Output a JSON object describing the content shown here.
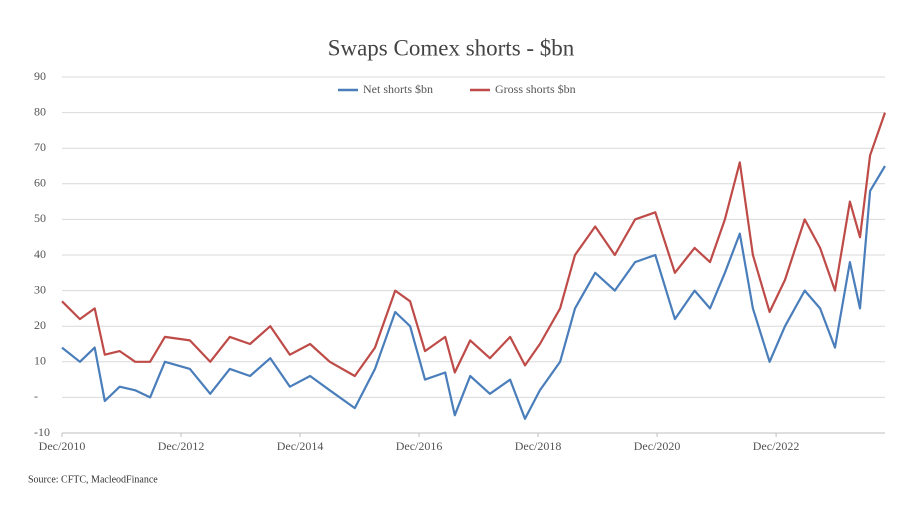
{
  "chart_data": {
    "type": "line",
    "title": "Swaps Comex shorts - $bn",
    "source": "Source: CFTC, MacleodFinance",
    "x": [
      2010.92,
      2011.22,
      2011.47,
      2011.64,
      2011.89,
      2012.15,
      2012.4,
      2012.65,
      2013.07,
      2013.41,
      2013.74,
      2014.08,
      2014.42,
      2014.75,
      2015.09,
      2015.42,
      2015.84,
      2016.18,
      2016.52,
      2016.77,
      2017.02,
      2017.36,
      2017.52,
      2017.78,
      2018.11,
      2018.45,
      2018.7,
      2018.95,
      2019.29,
      2019.54,
      2019.88,
      2020.21,
      2020.55,
      2020.89,
      2021.22,
      2021.55,
      2021.81,
      2022.06,
      2022.31,
      2022.53,
      2022.81,
      2023.07,
      2023.4,
      2023.66,
      2023.91,
      2024.16,
      2024.33,
      2024.5,
      2024.75
    ],
    "series": [
      {
        "name": "Net shorts $bn",
        "color": "#4a7ebb",
        "values": [
          14,
          10,
          14,
          -1,
          3,
          2,
          0,
          10,
          8,
          1,
          8,
          6,
          11,
          3,
          6,
          2,
          -3,
          8,
          24,
          20,
          5,
          7,
          -5,
          6,
          1,
          5,
          -6,
          2,
          10,
          25,
          35,
          30,
          38,
          40,
          22,
          30,
          25,
          35,
          46,
          25,
          10,
          20,
          30,
          25,
          14,
          38,
          25,
          58,
          65
        ]
      },
      {
        "name": "Gross shorts $bn",
        "color": "#be4b48",
        "values": [
          27,
          22,
          25,
          12,
          13,
          10,
          10,
          17,
          16,
          10,
          17,
          15,
          20,
          12,
          15,
          10,
          6,
          14,
          30,
          27,
          13,
          17,
          7,
          16,
          11,
          17,
          9,
          15,
          25,
          40,
          48,
          40,
          50,
          52,
          35,
          42,
          38,
          50,
          66,
          40,
          24,
          33,
          50,
          42,
          30,
          55,
          45,
          68,
          80
        ]
      }
    ],
    "xlim": [
      2010.92,
      2024.75
    ],
    "xticks": [
      {
        "value": 2010.92,
        "label": "Dec/2010"
      },
      {
        "value": 2012.92,
        "label": "Dec/2012"
      },
      {
        "value": 2014.92,
        "label": "Dec/2014"
      },
      {
        "value": 2016.92,
        "label": "Dec/2016"
      },
      {
        "value": 2018.92,
        "label": "Dec/2018"
      },
      {
        "value": 2020.92,
        "label": "Dec/2020"
      },
      {
        "value": 2022.92,
        "label": "Dec/2022"
      }
    ],
    "ylim": [
      -10,
      90
    ],
    "yticks": [
      -10,
      {
        "value": 0,
        "label": "-"
      },
      10,
      20,
      30,
      40,
      50,
      60,
      70,
      80,
      90
    ],
    "grid": true,
    "legend": "top"
  }
}
